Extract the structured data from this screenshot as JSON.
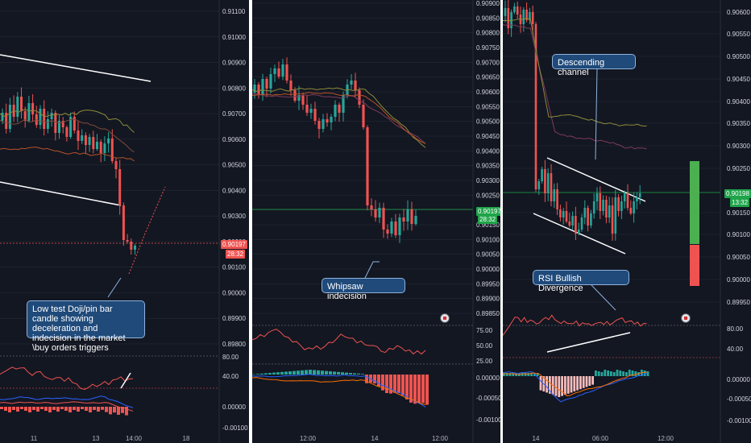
{
  "colors": {
    "bg": "#131722",
    "up": "#26a69a",
    "down": "#ef5350",
    "grid": "#2a2e39",
    "text": "#b2b5be",
    "callout": "#1f4a7a"
  },
  "panel1": {
    "price_axis": [
      "0.91100",
      "0.91000",
      "0.90900",
      "0.90800",
      "0.90700",
      "0.90600",
      "0.90500",
      "0.90400",
      "0.90300",
      "0.90200",
      "0.90100",
      "0.90000",
      "0.89900",
      "0.89800"
    ],
    "price_label": "0.90197",
    "timer_label": "28:32",
    "rsi_axis": [
      "80.00",
      "40.00"
    ],
    "macd_axis": [
      "0.00000",
      "-0.00100"
    ],
    "time_axis": [
      "11",
      "13",
      "14:00",
      "18"
    ],
    "callout": "Low test Doji/pin bar candle showing deceleration and indecision in the market \\buy orders triggers"
  },
  "panel2": {
    "price_axis": [
      "0.90900",
      "0.90850",
      "0.90800",
      "0.90750",
      "0.90700",
      "0.90650",
      "0.90600",
      "0.90550",
      "0.90500",
      "0.90450",
      "0.90400",
      "0.90350",
      "0.90300",
      "0.90250",
      "0.90200",
      "0.90150",
      "0.90100",
      "0.90050",
      "0.90000",
      "0.89950",
      "0.89900",
      "0.89850"
    ],
    "price_label": "0.90197",
    "timer_label": "28:32",
    "rsi_axis": [
      "75.00",
      "50.00",
      "25.00"
    ],
    "macd_axis": [
      "0.00000",
      "-0.00050",
      "-0.00100"
    ],
    "time_axis": [
      "12:00",
      "14",
      "12:00"
    ],
    "callout": "Whipsaw indecision"
  },
  "panel3": {
    "price_axis": [
      "0.90600",
      "0.90550",
      "0.90500",
      "0.90450",
      "0.90400",
      "0.90350",
      "0.90300",
      "0.90250",
      "0.90150",
      "0.90100",
      "0.90050",
      "0.90000",
      "0.89950"
    ],
    "price_label": "0.90198",
    "timer_label": "13:32",
    "rsi_axis": [
      "80.00",
      "40.00"
    ],
    "macd_axis": [
      "0.00000",
      "-0.00050",
      "-0.00100"
    ],
    "time_axis": [
      "14",
      "06:00",
      "12:00"
    ],
    "callout_channel": "Descending channel",
    "callout_rsi": "RSI Bullish Divergence"
  }
}
